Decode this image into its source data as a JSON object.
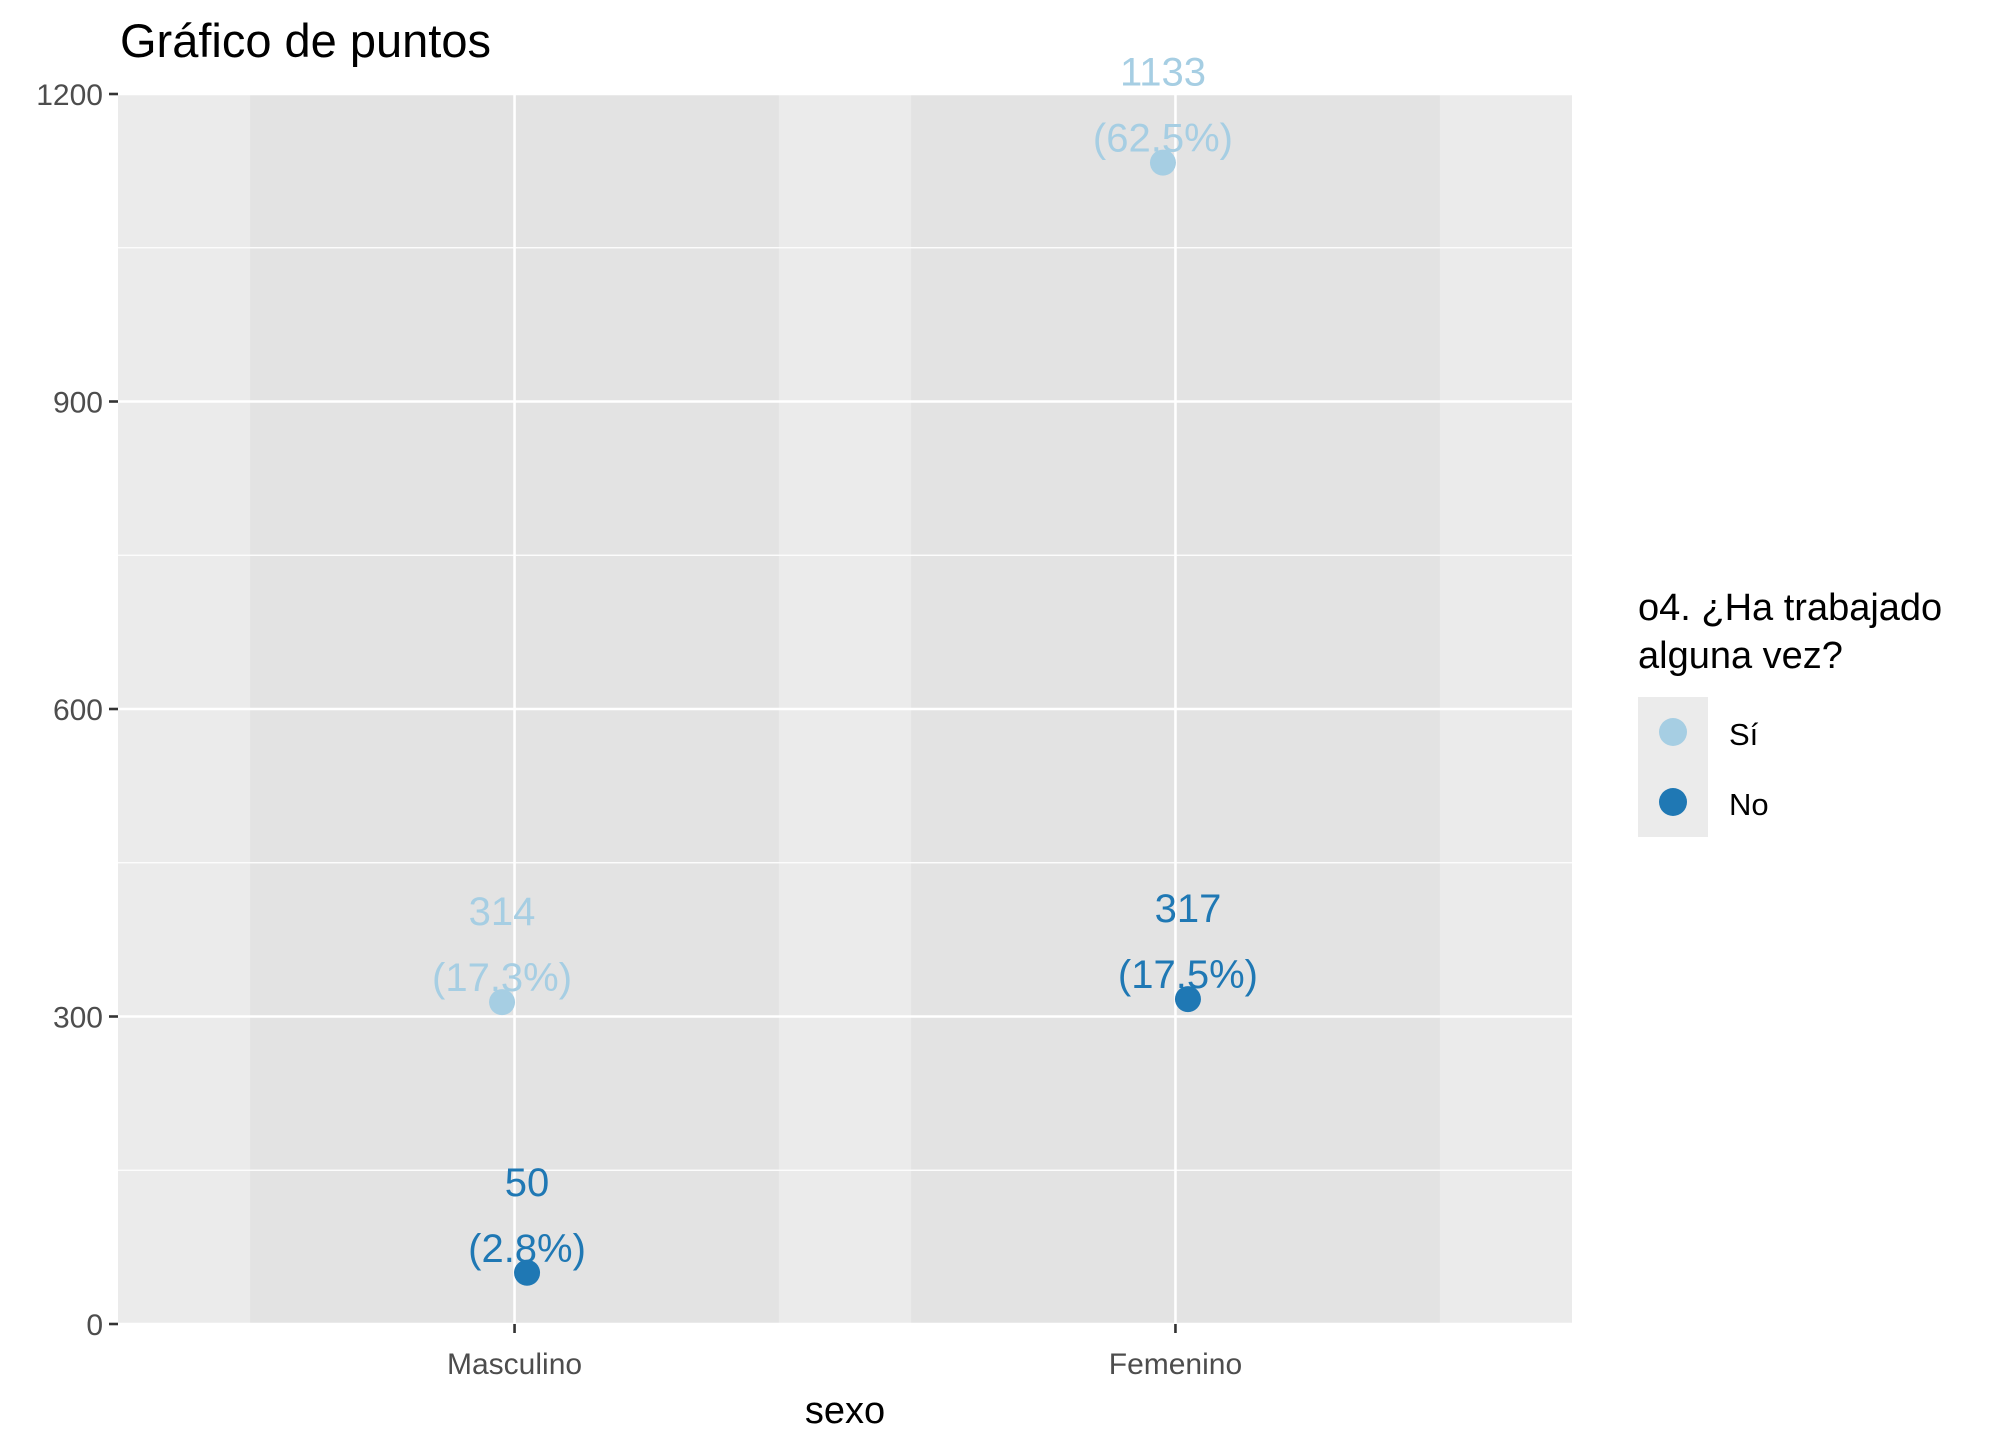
{
  "chart_data": {
    "type": "scatter",
    "title": "Gráfico de puntos",
    "xlabel": "sexo",
    "ylabel": "",
    "categories": [
      "Masculino",
      "Femenino"
    ],
    "ylim": [
      0,
      1200
    ],
    "yticks": [
      0,
      300,
      600,
      900,
      1200
    ],
    "grid": true,
    "legend": {
      "title_lines": [
        "o4. ¿Ha trabajado",
        "alguna vez?"
      ],
      "placement": "right"
    },
    "series": [
      {
        "name": "Sí",
        "color": "#a6cee3",
        "values": [
          314,
          1133
        ],
        "labels": [
          [
            "314",
            "(17.3%)"
          ],
          [
            "1133",
            "(62.5%)"
          ]
        ]
      },
      {
        "name": "No",
        "color": "#1f78b4",
        "values": [
          50,
          317
        ],
        "labels": [
          [
            "50",
            "(2.8%)"
          ],
          [
            "317",
            "(17.5%)"
          ]
        ]
      }
    ]
  },
  "colors": {
    "panel_background": "#ebebeb",
    "category_band": "#e3e3e3",
    "gridline": "#ffffff",
    "axis_text": "#4d4d4d",
    "tick": "#333333"
  }
}
